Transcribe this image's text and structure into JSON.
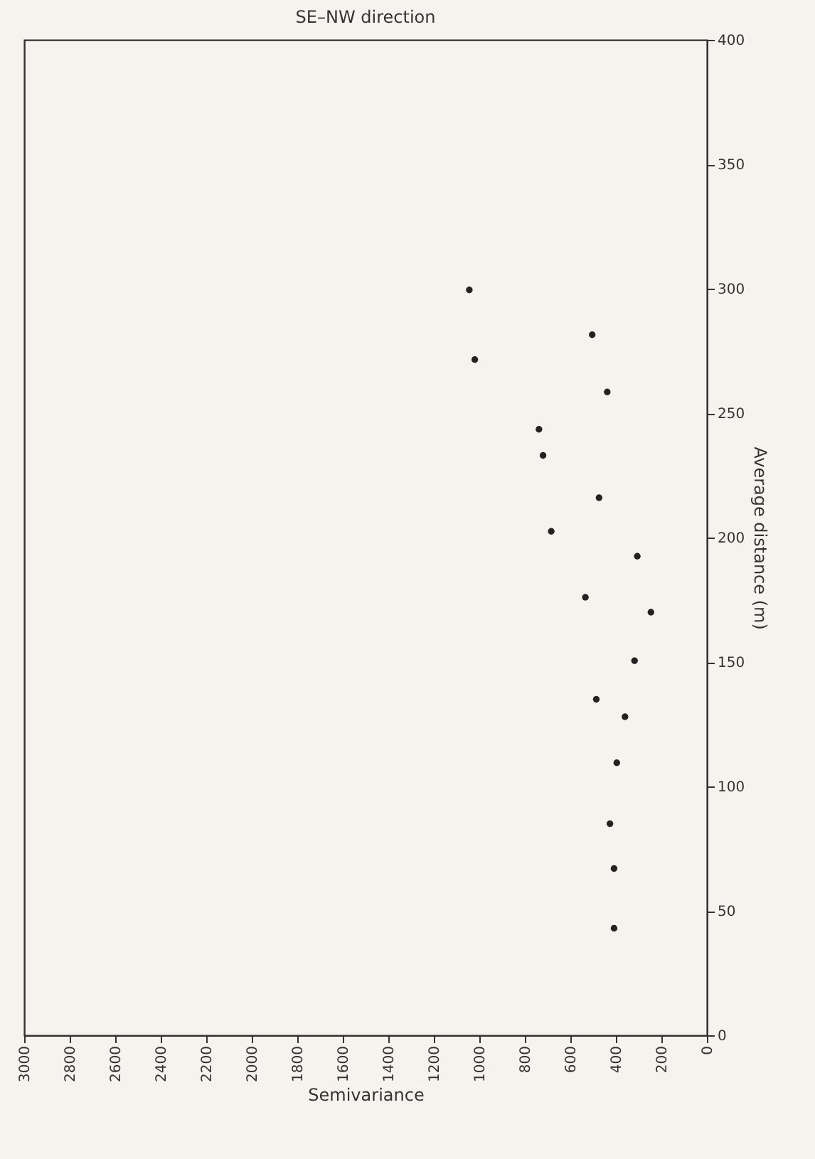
{
  "chart_data": {
    "type": "scatter",
    "title": "SE–NW direction",
    "xlabel": "Semivariance",
    "ylabel": "Average distance (m)",
    "x": [
      1044,
      1020,
      504,
      438,
      738,
      720,
      474,
      684,
      306,
      534,
      246,
      318,
      486,
      360,
      396,
      426,
      408,
      408
    ],
    "values": [
      299.5,
      271.5,
      281.5,
      258.5,
      243.5,
      233,
      216,
      202.5,
      192.5,
      176,
      170,
      150.5,
      135,
      128,
      109.5,
      85,
      67,
      43
    ],
    "color": "#222222",
    "grid": false,
    "xlim": [
      3000,
      0
    ],
    "xticks": [
      3000,
      2800,
      2600,
      2400,
      2200,
      2000,
      1800,
      1600,
      1400,
      1200,
      1000,
      800,
      600,
      400,
      200,
      0
    ],
    "ylim": [
      0,
      400
    ],
    "yticks": [
      0,
      50,
      100,
      150,
      200,
      250,
      300,
      350,
      400
    ]
  }
}
